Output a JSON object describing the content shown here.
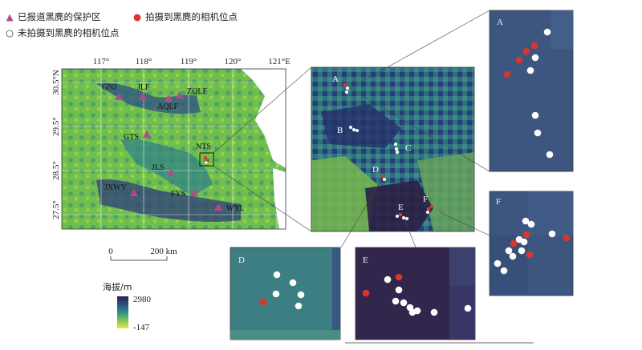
{
  "legend": {
    "reserve_label": "已报道黑麂的保护区",
    "captured_label": "拍摄到黑麂的相机位点",
    "not_captured_label": "未拍摄到黑麂的相机位点"
  },
  "main_map": {
    "lon_ticks": [
      "117°",
      "118°",
      "119°",
      "120°",
      "121°E"
    ],
    "lat_ticks": [
      "30.5°N",
      "29.5°",
      "28.5°",
      "27.5°"
    ],
    "reserves": [
      "GNJ",
      "JLF",
      "ZQLF",
      "AQLF",
      "GTS",
      "NTS",
      "JLS",
      "JXWY",
      "FYS",
      "WYL"
    ],
    "scale_zero": "0",
    "scale_label": "200 km"
  },
  "elevation_legend": {
    "title": "海拔/m",
    "max": "2980",
    "min": "-147"
  },
  "zoom_map": {
    "site_labels": [
      "A",
      "B",
      "C",
      "D",
      "E",
      "F"
    ]
  },
  "insets": {
    "A": "A",
    "D": "D",
    "E": "E",
    "F": "F"
  },
  "colors": {
    "reserve": "#b8478e",
    "captured": "#d9362b",
    "not_captured": "#ffffff",
    "inset_blue": "#3c5680",
    "inset_teal": "#3c7e82",
    "inset_purple": "#33264d"
  }
}
